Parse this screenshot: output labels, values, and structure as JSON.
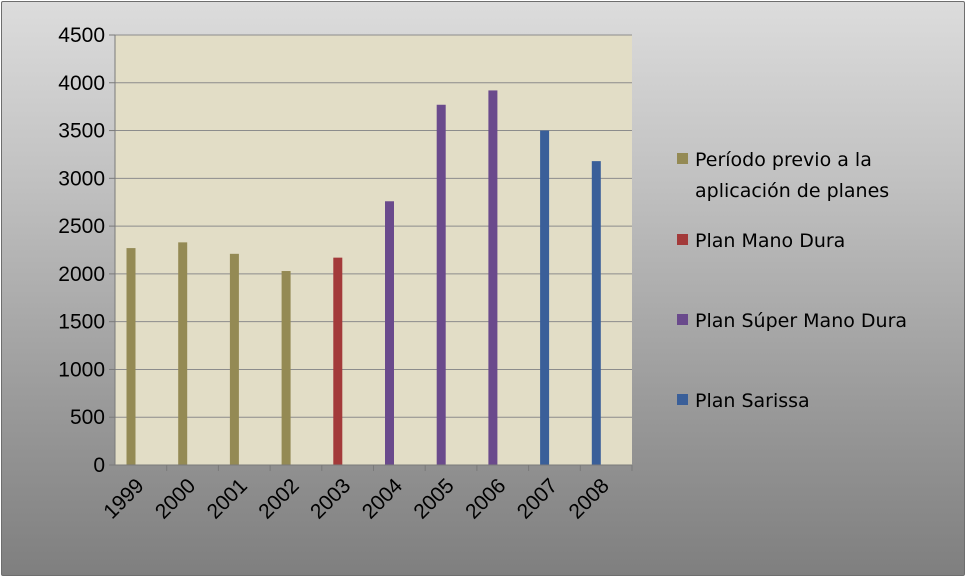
{
  "chart_data": {
    "type": "bar",
    "categories": [
      "1999",
      "2000",
      "2001",
      "2002",
      "2003",
      "2004",
      "2005",
      "2006",
      "2007",
      "2008"
    ],
    "values": [
      2270,
      2330,
      2210,
      2030,
      2170,
      2760,
      3770,
      3920,
      3500,
      3180
    ],
    "bar_groups": [
      0,
      0,
      0,
      0,
      1,
      2,
      2,
      2,
      3,
      3
    ],
    "ylim": [
      0,
      4500
    ],
    "yticks": [
      "0",
      "500",
      "1000",
      "1500",
      "2000",
      "2500",
      "3000",
      "3500",
      "4000",
      "4500"
    ],
    "grid": true,
    "legend_position": "right",
    "plot_background": "#e2ddc6",
    "legend": [
      {
        "lines": [
          "Período previo a la",
          "aplicación de planes"
        ],
        "color": "#948a54"
      },
      {
        "lines": [
          "Plan Mano Dura"
        ],
        "color": "#a33a3a"
      },
      {
        "lines": [
          "Plan Súper Mano Dura"
        ],
        "color": "#6a4a8c"
      },
      {
        "lines": [
          "Plan Sarissa"
        ],
        "color": "#3a5f99"
      }
    ]
  }
}
